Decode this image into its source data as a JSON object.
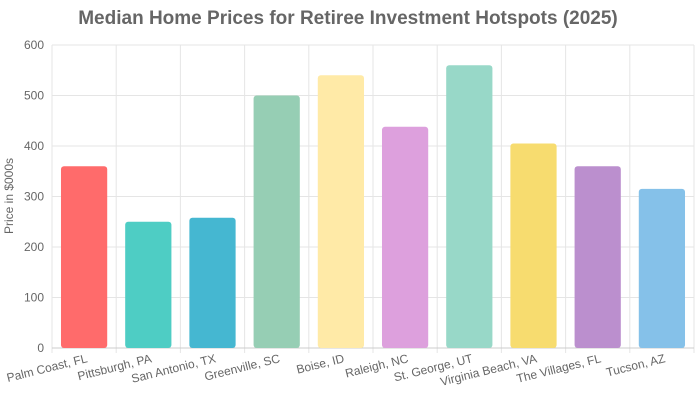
{
  "chart_data": {
    "type": "bar",
    "title": "Median Home Prices for Retiree Investment Hotspots (2025)",
    "xlabel": "",
    "ylabel": "Price in $000s",
    "ylim": [
      0,
      600
    ],
    "yticks": [
      0,
      100,
      200,
      300,
      400,
      500,
      600
    ],
    "grid": true,
    "legend": "none",
    "categories": [
      "Palm Coast, FL",
      "Pittsburgh, PA",
      "San Antonio, TX",
      "Greenville, SC",
      "Boise, ID",
      "Raleigh, NC",
      "St. George, UT",
      "Virginia Beach, VA",
      "The Villages, FL",
      "Tucson, AZ"
    ],
    "values": [
      360,
      250,
      258,
      500,
      540,
      438,
      560,
      405,
      360,
      315
    ],
    "colors": [
      "#ff6b6b",
      "#4ecdc4",
      "#45b7d1",
      "#96ceb4",
      "#ffeaa7",
      "#dda0dd",
      "#98d8c8",
      "#f7dc6f",
      "#bb8fce",
      "#85c1e9"
    ]
  }
}
